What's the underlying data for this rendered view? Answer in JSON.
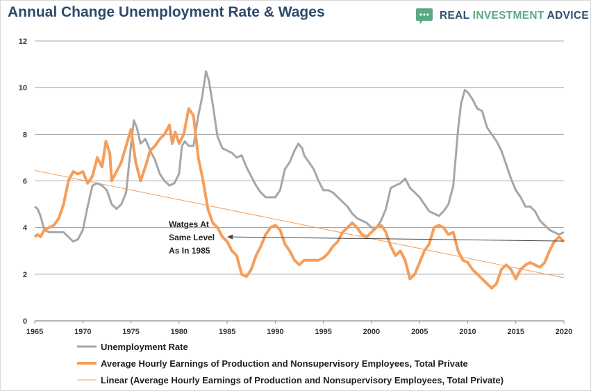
{
  "header": {
    "title": "Annual Change Unemployment Rate & Wages",
    "brand_part1": "REAL ",
    "brand_part2": "INVESTMENT",
    "brand_part3": " ADVICE",
    "brand_icon": "chat-bubble-icon"
  },
  "chart_data": {
    "type": "line",
    "title": "Annual Change Unemployment Rate & Wages",
    "xlabel": "",
    "ylabel": "",
    "xlim": [
      1965,
      2020
    ],
    "ylim": [
      0,
      12
    ],
    "x_ticks": [
      1965,
      1970,
      1975,
      1980,
      1985,
      1990,
      1995,
      2000,
      2005,
      2010,
      2015,
      2020
    ],
    "y_ticks": [
      0,
      2,
      4,
      6,
      8,
      10,
      12
    ],
    "grid": "horizontal",
    "legend_position": "bottom",
    "colors": {
      "unemployment": "#a6a6a6",
      "earnings": "#f59e5b",
      "linear": "#f59e5b",
      "gridline": "#8c8c8c",
      "annotation": "#444444"
    },
    "series": [
      {
        "name": "Unemployment Rate",
        "style": "line",
        "points": [
          [
            1965.0,
            4.9
          ],
          [
            1965.3,
            4.8
          ],
          [
            1965.6,
            4.5
          ],
          [
            1966.0,
            3.9
          ],
          [
            1966.5,
            3.8
          ],
          [
            1967.0,
            3.8
          ],
          [
            1967.5,
            3.8
          ],
          [
            1968.0,
            3.8
          ],
          [
            1968.5,
            3.6
          ],
          [
            1969.0,
            3.4
          ],
          [
            1969.5,
            3.5
          ],
          [
            1970.0,
            3.9
          ],
          [
            1970.5,
            4.9
          ],
          [
            1971.0,
            5.8
          ],
          [
            1971.5,
            5.9
          ],
          [
            1972.0,
            5.8
          ],
          [
            1972.5,
            5.6
          ],
          [
            1973.0,
            5.0
          ],
          [
            1973.5,
            4.8
          ],
          [
            1974.0,
            5.0
          ],
          [
            1974.5,
            5.5
          ],
          [
            1975.0,
            7.5
          ],
          [
            1975.3,
            8.6
          ],
          [
            1975.6,
            8.3
          ],
          [
            1976.0,
            7.6
          ],
          [
            1976.5,
            7.8
          ],
          [
            1977.0,
            7.3
          ],
          [
            1977.5,
            6.9
          ],
          [
            1978.0,
            6.3
          ],
          [
            1978.5,
            6.0
          ],
          [
            1979.0,
            5.8
          ],
          [
            1979.5,
            5.9
          ],
          [
            1980.0,
            6.3
          ],
          [
            1980.3,
            7.5
          ],
          [
            1980.6,
            7.7
          ],
          [
            1981.0,
            7.5
          ],
          [
            1981.5,
            7.5
          ],
          [
            1982.0,
            8.8
          ],
          [
            1982.4,
            9.6
          ],
          [
            1982.8,
            10.7
          ],
          [
            1983.1,
            10.3
          ],
          [
            1983.5,
            9.3
          ],
          [
            1984.0,
            7.9
          ],
          [
            1984.5,
            7.4
          ],
          [
            1985.0,
            7.3
          ],
          [
            1985.5,
            7.2
          ],
          [
            1986.0,
            7.0
          ],
          [
            1986.5,
            7.1
          ],
          [
            1987.0,
            6.6
          ],
          [
            1987.5,
            6.2
          ],
          [
            1988.0,
            5.8
          ],
          [
            1988.5,
            5.5
          ],
          [
            1989.0,
            5.3
          ],
          [
            1989.5,
            5.3
          ],
          [
            1990.0,
            5.3
          ],
          [
            1990.5,
            5.6
          ],
          [
            1991.0,
            6.5
          ],
          [
            1991.5,
            6.8
          ],
          [
            1992.0,
            7.3
          ],
          [
            1992.4,
            7.6
          ],
          [
            1992.8,
            7.4
          ],
          [
            1993.0,
            7.1
          ],
          [
            1993.5,
            6.8
          ],
          [
            1994.0,
            6.5
          ],
          [
            1994.5,
            6.0
          ],
          [
            1995.0,
            5.6
          ],
          [
            1995.5,
            5.6
          ],
          [
            1996.0,
            5.5
          ],
          [
            1996.5,
            5.3
          ],
          [
            1997.0,
            5.1
          ],
          [
            1997.5,
            4.9
          ],
          [
            1998.0,
            4.6
          ],
          [
            1998.5,
            4.4
          ],
          [
            1999.0,
            4.3
          ],
          [
            1999.5,
            4.2
          ],
          [
            2000.0,
            4.0
          ],
          [
            2000.5,
            4.0
          ],
          [
            2001.0,
            4.3
          ],
          [
            2001.5,
            4.8
          ],
          [
            2002.0,
            5.7
          ],
          [
            2002.5,
            5.8
          ],
          [
            2003.0,
            5.9
          ],
          [
            2003.5,
            6.1
          ],
          [
            2004.0,
            5.7
          ],
          [
            2004.5,
            5.5
          ],
          [
            2005.0,
            5.3
          ],
          [
            2005.5,
            5.0
          ],
          [
            2006.0,
            4.7
          ],
          [
            2006.5,
            4.6
          ],
          [
            2007.0,
            4.5
          ],
          [
            2007.5,
            4.7
          ],
          [
            2008.0,
            5.0
          ],
          [
            2008.5,
            5.8
          ],
          [
            2009.0,
            8.2
          ],
          [
            2009.3,
            9.3
          ],
          [
            2009.7,
            9.9
          ],
          [
            2010.0,
            9.8
          ],
          [
            2010.5,
            9.5
          ],
          [
            2011.0,
            9.1
          ],
          [
            2011.5,
            9.0
          ],
          [
            2012.0,
            8.3
          ],
          [
            2012.5,
            8.0
          ],
          [
            2013.0,
            7.7
          ],
          [
            2013.5,
            7.3
          ],
          [
            2014.0,
            6.7
          ],
          [
            2014.5,
            6.1
          ],
          [
            2015.0,
            5.6
          ],
          [
            2015.5,
            5.3
          ],
          [
            2016.0,
            4.9
          ],
          [
            2016.5,
            4.9
          ],
          [
            2017.0,
            4.7
          ],
          [
            2017.5,
            4.3
          ],
          [
            2018.0,
            4.1
          ],
          [
            2018.5,
            3.9
          ],
          [
            2019.0,
            3.8
          ],
          [
            2019.5,
            3.7
          ],
          [
            2020.0,
            3.8
          ]
        ]
      },
      {
        "name": "Average Hourly Earnings of Production and Nonsupervisory Employees, Total Private",
        "style": "line",
        "points": [
          [
            1965.0,
            3.6
          ],
          [
            1965.3,
            3.7
          ],
          [
            1965.6,
            3.6
          ],
          [
            1966.0,
            3.9
          ],
          [
            1966.5,
            4.0
          ],
          [
            1967.0,
            4.1
          ],
          [
            1967.5,
            4.4
          ],
          [
            1968.0,
            5.0
          ],
          [
            1968.5,
            6.0
          ],
          [
            1969.0,
            6.4
          ],
          [
            1969.5,
            6.3
          ],
          [
            1970.0,
            6.4
          ],
          [
            1970.5,
            5.9
          ],
          [
            1971.0,
            6.2
          ],
          [
            1971.5,
            7.0
          ],
          [
            1972.0,
            6.6
          ],
          [
            1972.4,
            7.7
          ],
          [
            1972.8,
            7.2
          ],
          [
            1973.0,
            6.0
          ],
          [
            1973.5,
            6.4
          ],
          [
            1974.0,
            6.8
          ],
          [
            1974.5,
            7.5
          ],
          [
            1975.0,
            8.2
          ],
          [
            1975.5,
            6.8
          ],
          [
            1976.0,
            6.0
          ],
          [
            1976.5,
            6.6
          ],
          [
            1977.0,
            7.3
          ],
          [
            1977.5,
            7.5
          ],
          [
            1978.0,
            7.8
          ],
          [
            1978.5,
            8.0
          ],
          [
            1979.0,
            8.4
          ],
          [
            1979.3,
            7.6
          ],
          [
            1979.6,
            8.1
          ],
          [
            1980.0,
            7.6
          ],
          [
            1980.5,
            8.0
          ],
          [
            1981.0,
            9.1
          ],
          [
            1981.5,
            8.8
          ],
          [
            1982.0,
            7.0
          ],
          [
            1982.5,
            6.0
          ],
          [
            1983.0,
            4.8
          ],
          [
            1983.5,
            4.2
          ],
          [
            1984.0,
            4.0
          ],
          [
            1984.5,
            3.6
          ],
          [
            1985.0,
            3.4
          ],
          [
            1985.5,
            3.0
          ],
          [
            1986.0,
            2.8
          ],
          [
            1986.5,
            2.0
          ],
          [
            1987.0,
            1.9
          ],
          [
            1987.5,
            2.2
          ],
          [
            1988.0,
            2.8
          ],
          [
            1988.5,
            3.2
          ],
          [
            1989.0,
            3.7
          ],
          [
            1989.5,
            4.0
          ],
          [
            1990.0,
            4.1
          ],
          [
            1990.5,
            3.9
          ],
          [
            1991.0,
            3.3
          ],
          [
            1991.5,
            3.0
          ],
          [
            1992.0,
            2.6
          ],
          [
            1992.5,
            2.4
          ],
          [
            1993.0,
            2.6
          ],
          [
            1993.5,
            2.6
          ],
          [
            1994.0,
            2.6
          ],
          [
            1994.5,
            2.6
          ],
          [
            1995.0,
            2.7
          ],
          [
            1995.5,
            2.9
          ],
          [
            1996.0,
            3.2
          ],
          [
            1996.5,
            3.4
          ],
          [
            1997.0,
            3.8
          ],
          [
            1997.5,
            4.0
          ],
          [
            1998.0,
            4.2
          ],
          [
            1998.5,
            4.0
          ],
          [
            1999.0,
            3.7
          ],
          [
            1999.5,
            3.6
          ],
          [
            2000.0,
            3.8
          ],
          [
            2000.5,
            4.0
          ],
          [
            2001.0,
            4.1
          ],
          [
            2001.5,
            3.8
          ],
          [
            2002.0,
            3.2
          ],
          [
            2002.5,
            2.8
          ],
          [
            2003.0,
            3.0
          ],
          [
            2003.5,
            2.6
          ],
          [
            2004.0,
            1.8
          ],
          [
            2004.5,
            2.0
          ],
          [
            2005.0,
            2.5
          ],
          [
            2005.5,
            3.0
          ],
          [
            2006.0,
            3.3
          ],
          [
            2006.5,
            4.0
          ],
          [
            2007.0,
            4.1
          ],
          [
            2007.5,
            4.0
          ],
          [
            2008.0,
            3.7
          ],
          [
            2008.5,
            3.8
          ],
          [
            2009.0,
            3.0
          ],
          [
            2009.5,
            2.6
          ],
          [
            2010.0,
            2.5
          ],
          [
            2010.5,
            2.2
          ],
          [
            2011.0,
            2.0
          ],
          [
            2011.5,
            1.8
          ],
          [
            2012.0,
            1.6
          ],
          [
            2012.5,
            1.4
          ],
          [
            2013.0,
            1.6
          ],
          [
            2013.5,
            2.2
          ],
          [
            2014.0,
            2.4
          ],
          [
            2014.5,
            2.2
          ],
          [
            2015.0,
            1.8
          ],
          [
            2015.5,
            2.2
          ],
          [
            2016.0,
            2.4
          ],
          [
            2016.5,
            2.5
          ],
          [
            2017.0,
            2.4
          ],
          [
            2017.5,
            2.3
          ],
          [
            2018.0,
            2.5
          ],
          [
            2018.5,
            3.0
          ],
          [
            2019.0,
            3.4
          ],
          [
            2019.5,
            3.6
          ],
          [
            2020.0,
            3.4
          ]
        ]
      },
      {
        "name": "Linear (Average Hourly Earnings of Production and Nonsupervisory Employees, Total Private)",
        "style": "trendline",
        "points": [
          [
            1965.0,
            6.45
          ],
          [
            2020.0,
            1.85
          ]
        ]
      }
    ],
    "annotations": [
      {
        "text": "Watges At",
        "x": 1985.0,
        "y": 3.6
      },
      {
        "text": "Same Level",
        "x": 1985.0,
        "y": 3.6
      },
      {
        "text": "As In 1985",
        "x": 1985.0,
        "y": 3.6
      }
    ],
    "annotation_arrow": {
      "from": [
        2020.0,
        3.42
      ],
      "to": [
        1985.0,
        3.6
      ]
    }
  }
}
